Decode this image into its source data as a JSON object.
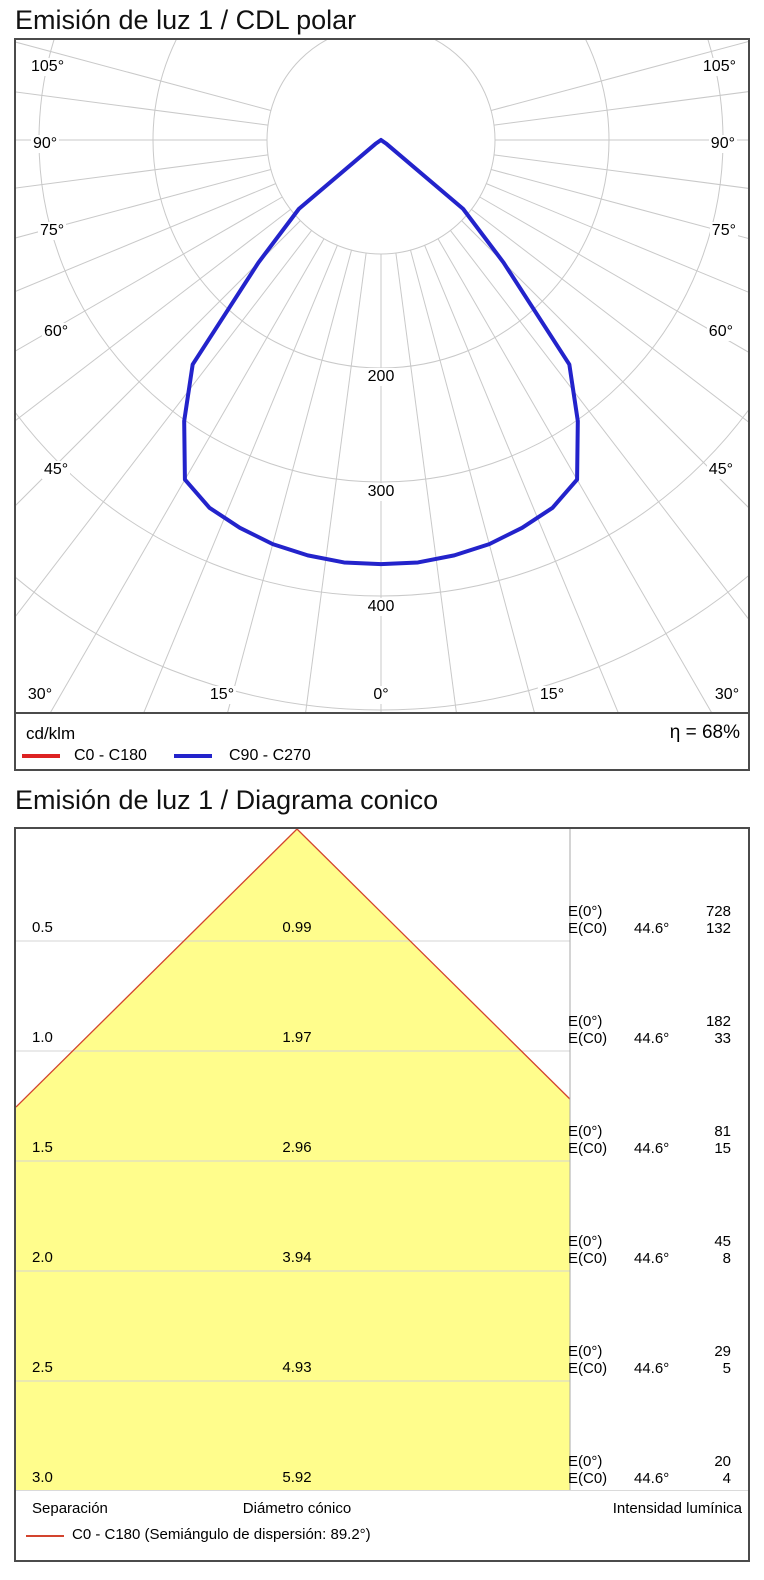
{
  "page": {
    "polar_title": "Emisión de luz 1 / CDL polar",
    "cone_title": "Emisión de luz 1 / Diagrama conico"
  },
  "polar": {
    "unit_label": "cd/klm",
    "efficiency_label": "η = 68%",
    "legend": [
      {
        "label": "C0 - C180",
        "color": "#dd2222"
      },
      {
        "label": "C90 - C270",
        "color": "#2323cb"
      }
    ],
    "side_angle_labels": [
      "105°",
      "90°",
      "75°",
      "60°",
      "45°"
    ],
    "bottom_angle_labels": [
      "30°",
      "15°",
      "0°",
      "15°",
      "30°"
    ],
    "ring_labels": [
      "200",
      "300",
      "400"
    ]
  },
  "cone": {
    "e0_label": "E(0°)",
    "ec0_label": "E(C0)",
    "ec0_angle": "44.6°",
    "footer_columns": [
      "Separación",
      "Diámetro cónico",
      "Intensidad lumínica"
    ],
    "legend_label": "C0 - C180 (Semiángulo de dispersión: 89.2°)",
    "legend_color": "#d3442e"
  },
  "chart_data": [
    {
      "type": "line",
      "subtype": "polar-luminous-intensity-distribution",
      "title": "Emisión de luz 1 / CDL polar",
      "unit": "cd/klm",
      "efficiency_percent": 68,
      "angle_ticks_deg": [
        0,
        15,
        30,
        45,
        60,
        75,
        90,
        105
      ],
      "grid_angle_step_deg": 7.5,
      "radial_rings": [
        100,
        200,
        300,
        400,
        500
      ],
      "labeled_rings": [
        200,
        300,
        400
      ],
      "angles_deg": [
        0,
        5,
        10,
        15,
        20,
        25,
        30,
        35,
        40,
        45,
        50,
        55,
        60,
        65,
        70,
        75,
        80,
        85,
        90,
        95,
        100,
        105
      ],
      "series": [
        {
          "name": "C0 - C180",
          "color": "#dd2222",
          "values": [
            372,
            372,
            370,
            367,
            362,
            356,
            344,
            301,
            257,
            152,
            94,
            6,
            0,
            0,
            0,
            0,
            0,
            0,
            0,
            0,
            0,
            0
          ]
        },
        {
          "name": "C90 - C270",
          "color": "#2323cb",
          "values": [
            372,
            372,
            370,
            367,
            362,
            356,
            344,
            301,
            257,
            152,
            94,
            6,
            0,
            0,
            0,
            0,
            0,
            0,
            0,
            0,
            0,
            0
          ]
        }
      ],
      "legend_position": "bottom",
      "grid_color": "#c9c9c9"
    },
    {
      "type": "area",
      "subtype": "cone-diagram",
      "title": "Emisión de luz 1 / Diagrama conico",
      "beam_semiangle_deg": 89.2,
      "half_angle_deg": 44.6,
      "separations_m": [
        0.5,
        1.0,
        1.5,
        2.0,
        2.5,
        3.0
      ],
      "cone_diameters_m": [
        0.99,
        1.97,
        2.96,
        3.94,
        4.93,
        5.92
      ],
      "illuminance_E0": [
        728,
        182,
        81,
        45,
        29,
        20
      ],
      "illuminance_EC0": [
        132,
        33,
        15,
        8,
        5,
        4
      ],
      "columns": [
        "Separación",
        "Diámetro cónico",
        "Intensidad lumínica"
      ],
      "cone_fill": "#fffd8c",
      "cone_edge": "#d3442e",
      "grid_color": "#d4d4d4"
    }
  ]
}
